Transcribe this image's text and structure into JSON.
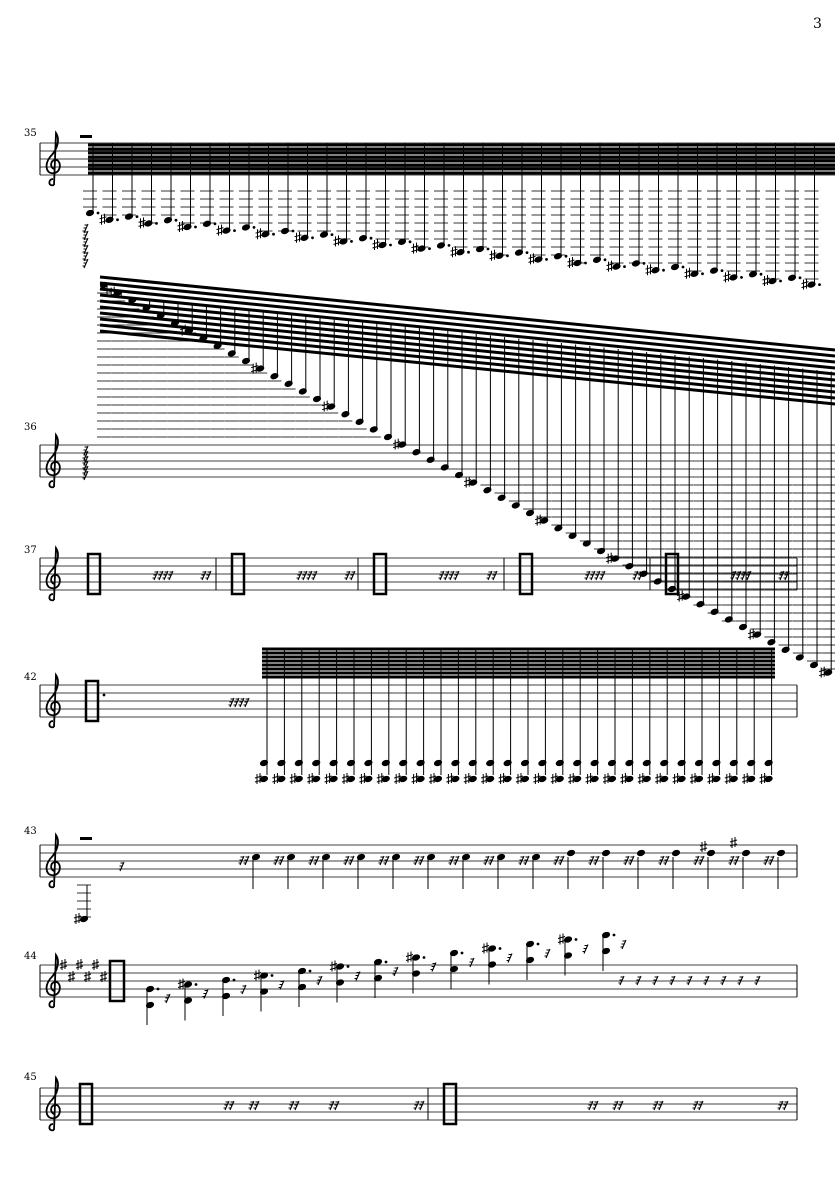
{
  "page": {
    "number": "3"
  },
  "systems": [
    {
      "measure": "35"
    },
    {
      "measure": "36"
    },
    {
      "measure": "37"
    },
    {
      "measure": "42"
    },
    {
      "measure": "43"
    },
    {
      "measure": "44"
    },
    {
      "measure": "45"
    }
  ],
  "colors": {
    "ink": "#000000",
    "paper": "#ffffff"
  }
}
